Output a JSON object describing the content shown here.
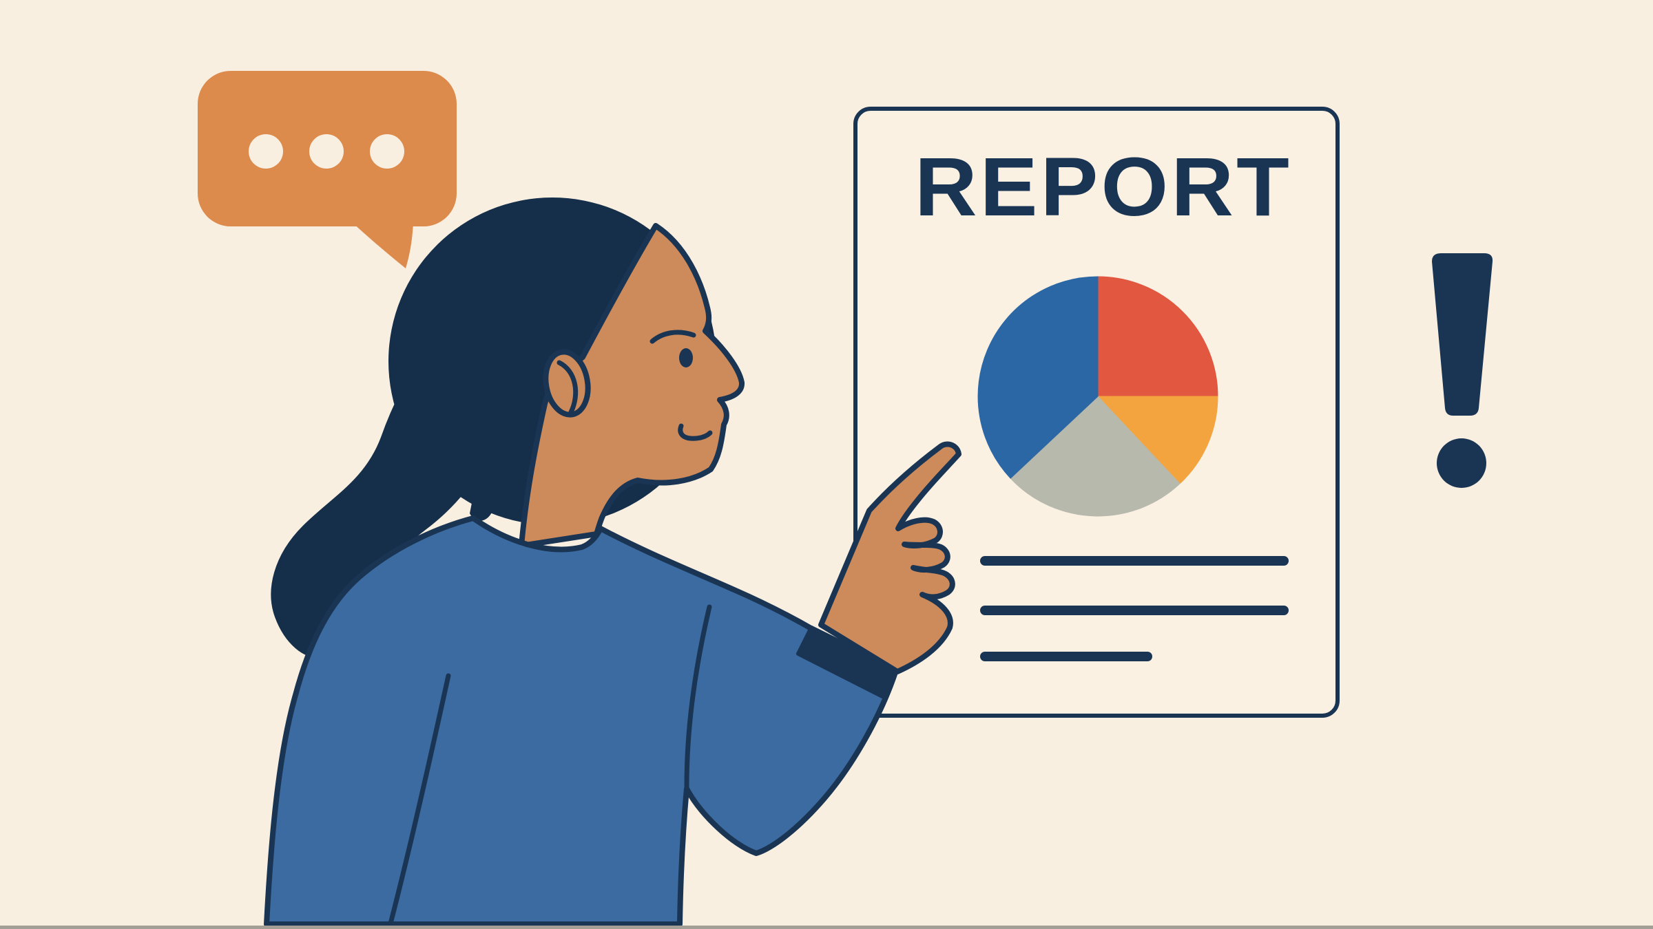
{
  "scene": {
    "description": "Flat vector illustration: woman in profile pointing at a REPORT document with a pie chart, speech bubble with typing dots, and an exclamation mark",
    "background_color": "#f9efe1"
  },
  "palette": {
    "bg": "#f9efe1",
    "outline": "#1a3553",
    "hair": "#152f4b",
    "skin": "#cd8a5b",
    "sweater": "#3c6ba1",
    "orange": "#dc8b4d",
    "doc_fill": "#faf1e3",
    "bottom_strip": "#a39f97"
  },
  "speech_bubble": {
    "icon": "typing-dots-speech-bubble",
    "dot_count": 3
  },
  "document": {
    "title": "REPORT",
    "placeholder_line_count": 3,
    "placeholder_lines": [
      "long",
      "long",
      "short"
    ]
  },
  "chart_data": {
    "type": "pie",
    "title": "",
    "legend": false,
    "start_angle_deg": 0,
    "direction": "clockwise",
    "segments": [
      {
        "label": "red",
        "value": 25,
        "color": "#e25740"
      },
      {
        "label": "orange",
        "value": 13,
        "color": "#f3a43e"
      },
      {
        "label": "gray",
        "value": 25,
        "color": "#b6b9ac"
      },
      {
        "label": "blue",
        "value": 37,
        "color": "#2c67a5"
      }
    ]
  },
  "exclamation": {
    "glyph": "!"
  }
}
